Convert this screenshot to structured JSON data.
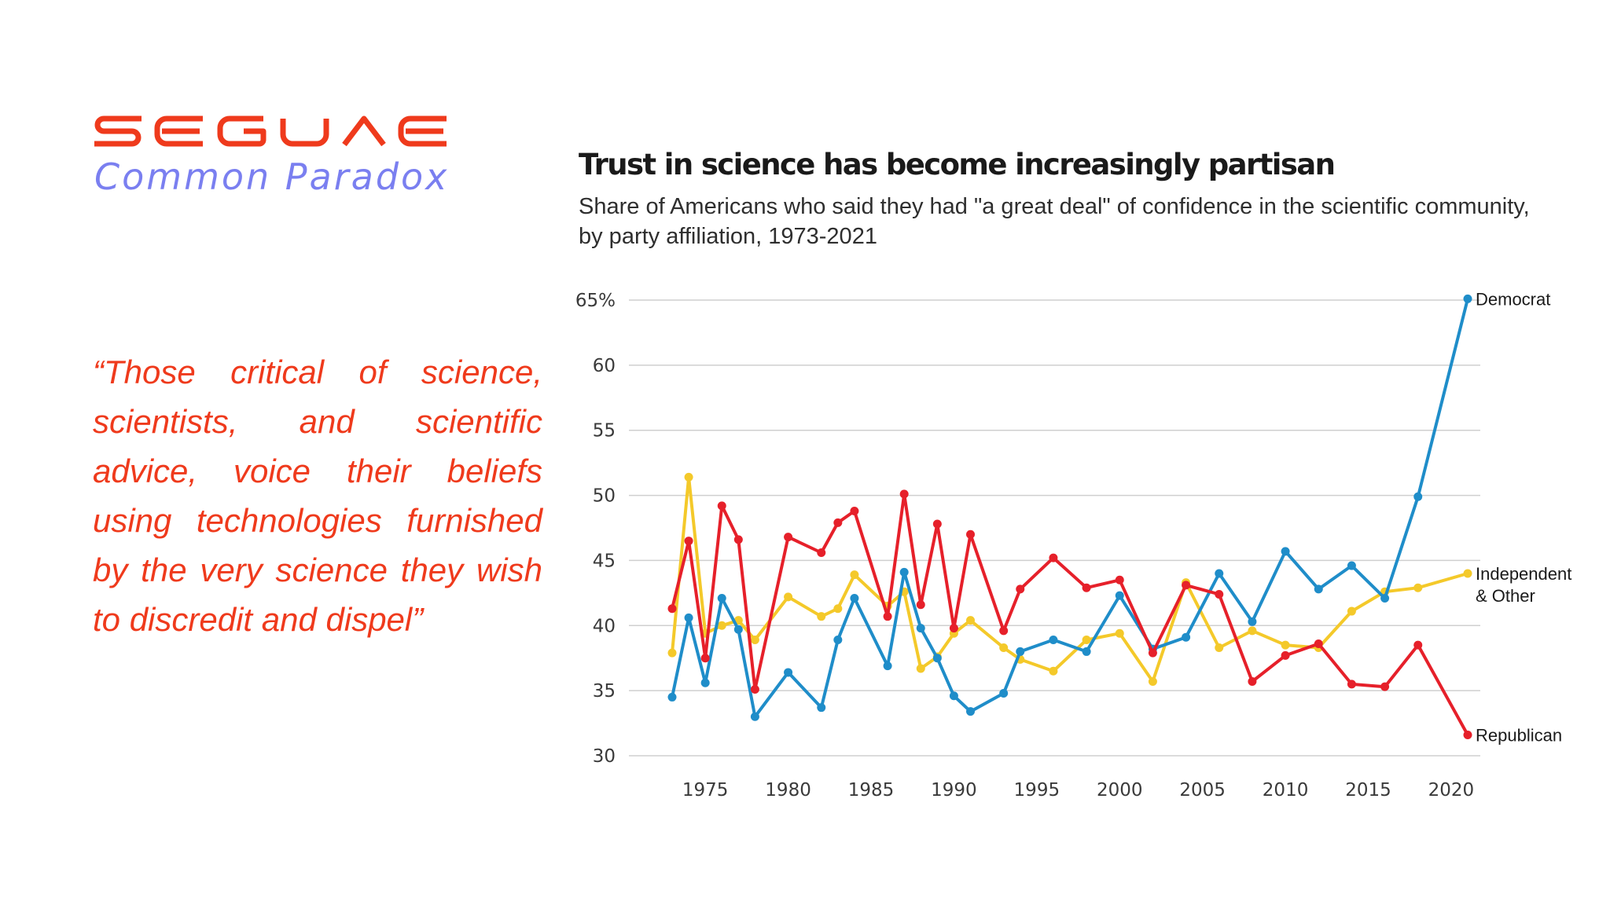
{
  "brand": {
    "logo_text": "SEGUAE",
    "subtitle": "Common Paradox",
    "logo_color": "#ef3a1c",
    "subtitle_color": "#7a7ff0"
  },
  "quote": {
    "text": "“Those critical of science, scientists, and scientific advice, voice their beliefs using technologies furnished by the very science they wish to discredit and dispel”",
    "color": "#ef3a1c"
  },
  "chart_data": {
    "type": "line",
    "title": "Trust in science has become increasingly partisan",
    "subtitle": "Share of Americans who said they had \"a great deal\" of confidence in the scientific community, by party affiliation, 1973-2021",
    "xlabel": "",
    "ylabel": "",
    "xlim": [
      1973,
      2021
    ],
    "ylim": [
      30,
      65
    ],
    "x_ticks": [
      "1975",
      "1980",
      "1985",
      "1990",
      "1995",
      "2000",
      "2005",
      "2010",
      "2015",
      "2020"
    ],
    "y_ticks": [
      "65%",
      "60",
      "55",
      "50",
      "45",
      "40",
      "35",
      "30"
    ],
    "grid": "horizontal",
    "x": [
      1973,
      1974,
      1975,
      1976,
      1977,
      1978,
      1980,
      1982,
      1983,
      1984,
      1986,
      1987,
      1988,
      1989,
      1990,
      1991,
      1993,
      1994,
      1996,
      1998,
      2000,
      2002,
      2004,
      2006,
      2008,
      2010,
      2012,
      2014,
      2016,
      2018,
      2021
    ],
    "series": [
      {
        "name": "Democrat",
        "color": "#1f8dc9",
        "values": [
          34.5,
          40.6,
          35.6,
          42.1,
          39.7,
          33.0,
          36.4,
          33.7,
          38.9,
          42.1,
          36.9,
          44.1,
          39.8,
          37.5,
          34.6,
          33.4,
          34.8,
          38.0,
          38.9,
          38.0,
          42.3,
          38.2,
          39.1,
          44.0,
          40.3,
          45.7,
          42.8,
          44.6,
          42.1,
          49.9,
          65.1
        ]
      },
      {
        "name": "Independent & Other",
        "color": "#f4c92a",
        "values": [
          37.9,
          51.4,
          39.4,
          40.0,
          40.4,
          38.9,
          42.2,
          40.7,
          41.3,
          43.9,
          41.5,
          42.6,
          36.7,
          37.6,
          39.4,
          40.4,
          38.3,
          37.4,
          36.5,
          38.9,
          39.4,
          35.7,
          43.3,
          38.3,
          39.6,
          38.5,
          38.3,
          41.1,
          42.6,
          42.9,
          44.0
        ]
      },
      {
        "name": "Republican",
        "color": "#e6202a",
        "values": [
          41.3,
          46.5,
          37.5,
          49.2,
          46.6,
          35.1,
          46.8,
          45.6,
          47.9,
          48.8,
          40.7,
          50.1,
          41.6,
          47.8,
          39.8,
          47.0,
          39.6,
          42.8,
          45.2,
          42.9,
          43.5,
          37.9,
          43.1,
          42.4,
          35.7,
          37.7,
          38.6,
          35.5,
          35.3,
          38.5,
          31.6
        ]
      }
    ]
  }
}
